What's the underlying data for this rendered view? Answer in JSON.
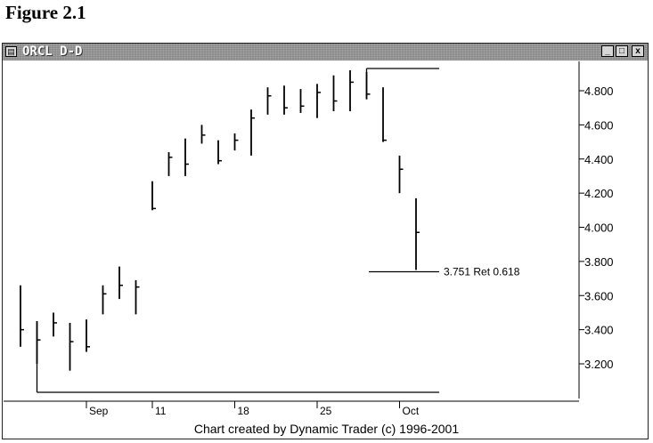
{
  "figure_label": "Figure 2.1",
  "window": {
    "title": "ORCL D-D",
    "app_icon": "chart-app-icon",
    "buttons": {
      "minimize": "_",
      "maximize": "□",
      "close": "x"
    }
  },
  "footer": "Chart created by Dynamic Trader (c) 1996-2001",
  "annotation": {
    "text": "3.751 Ret 0.618",
    "value": 3.751
  },
  "chart_data": {
    "type": "ohlc-bar",
    "y_ticks": [
      "4.800",
      "4.600",
      "4.400",
      "4.200",
      "4.000",
      "3.800",
      "3.600",
      "3.400",
      "3.200"
    ],
    "x_labels": [
      "Sep",
      "11",
      "18",
      "25",
      "Oct"
    ],
    "ylim": [
      3.03,
      4.95
    ],
    "bars": [
      {
        "day": 0,
        "high": 3.66,
        "low": 3.3,
        "close": 3.4
      },
      {
        "day": 1,
        "high": 3.45,
        "low": 3.2,
        "close": 3.34
      },
      {
        "day": 2,
        "high": 3.5,
        "low": 3.36,
        "close": 3.44
      },
      {
        "day": 3,
        "high": 3.44,
        "low": 3.16,
        "close": 3.33
      },
      {
        "day": 4,
        "high": 3.46,
        "low": 3.27,
        "close": 3.3
      },
      {
        "day": 5,
        "high": 3.66,
        "low": 3.49,
        "close": 3.61
      },
      {
        "day": 6,
        "high": 3.77,
        "low": 3.58,
        "close": 3.66
      },
      {
        "day": 7,
        "high": 3.69,
        "low": 3.49,
        "close": 3.65
      },
      {
        "day": 8,
        "high": 4.27,
        "low": 4.1,
        "close": 4.11
      },
      {
        "day": 9,
        "high": 4.44,
        "low": 4.3,
        "close": 4.41
      },
      {
        "day": 10,
        "high": 4.52,
        "low": 4.3,
        "close": 4.37
      },
      {
        "day": 11,
        "high": 4.6,
        "low": 4.49,
        "close": 4.54
      },
      {
        "day": 12,
        "high": 4.51,
        "low": 4.37,
        "close": 4.39
      },
      {
        "day": 13,
        "high": 4.55,
        "low": 4.45,
        "close": 4.51
      },
      {
        "day": 14,
        "high": 4.69,
        "low": 4.42,
        "close": 4.64
      },
      {
        "day": 15,
        "high": 4.82,
        "low": 4.66,
        "close": 4.77
      },
      {
        "day": 16,
        "high": 4.83,
        "low": 4.66,
        "close": 4.7
      },
      {
        "day": 17,
        "high": 4.81,
        "low": 4.67,
        "close": 4.71
      },
      {
        "day": 18,
        "high": 4.84,
        "low": 4.64,
        "close": 4.79
      },
      {
        "day": 19,
        "high": 4.89,
        "low": 4.68,
        "close": 4.74
      },
      {
        "day": 20,
        "high": 4.92,
        "low": 4.68,
        "close": 4.85
      },
      {
        "day": 21,
        "high": 4.91,
        "low": 4.75,
        "close": 4.78
      },
      {
        "day": 22,
        "high": 4.82,
        "low": 4.5,
        "close": 4.51
      },
      {
        "day": 23,
        "high": 4.42,
        "low": 4.2,
        "close": 4.34
      },
      {
        "day": 24,
        "high": 4.17,
        "low": 3.75,
        "close": 3.97
      }
    ],
    "swing_low": 3.16,
    "swing_high": 4.92
  }
}
